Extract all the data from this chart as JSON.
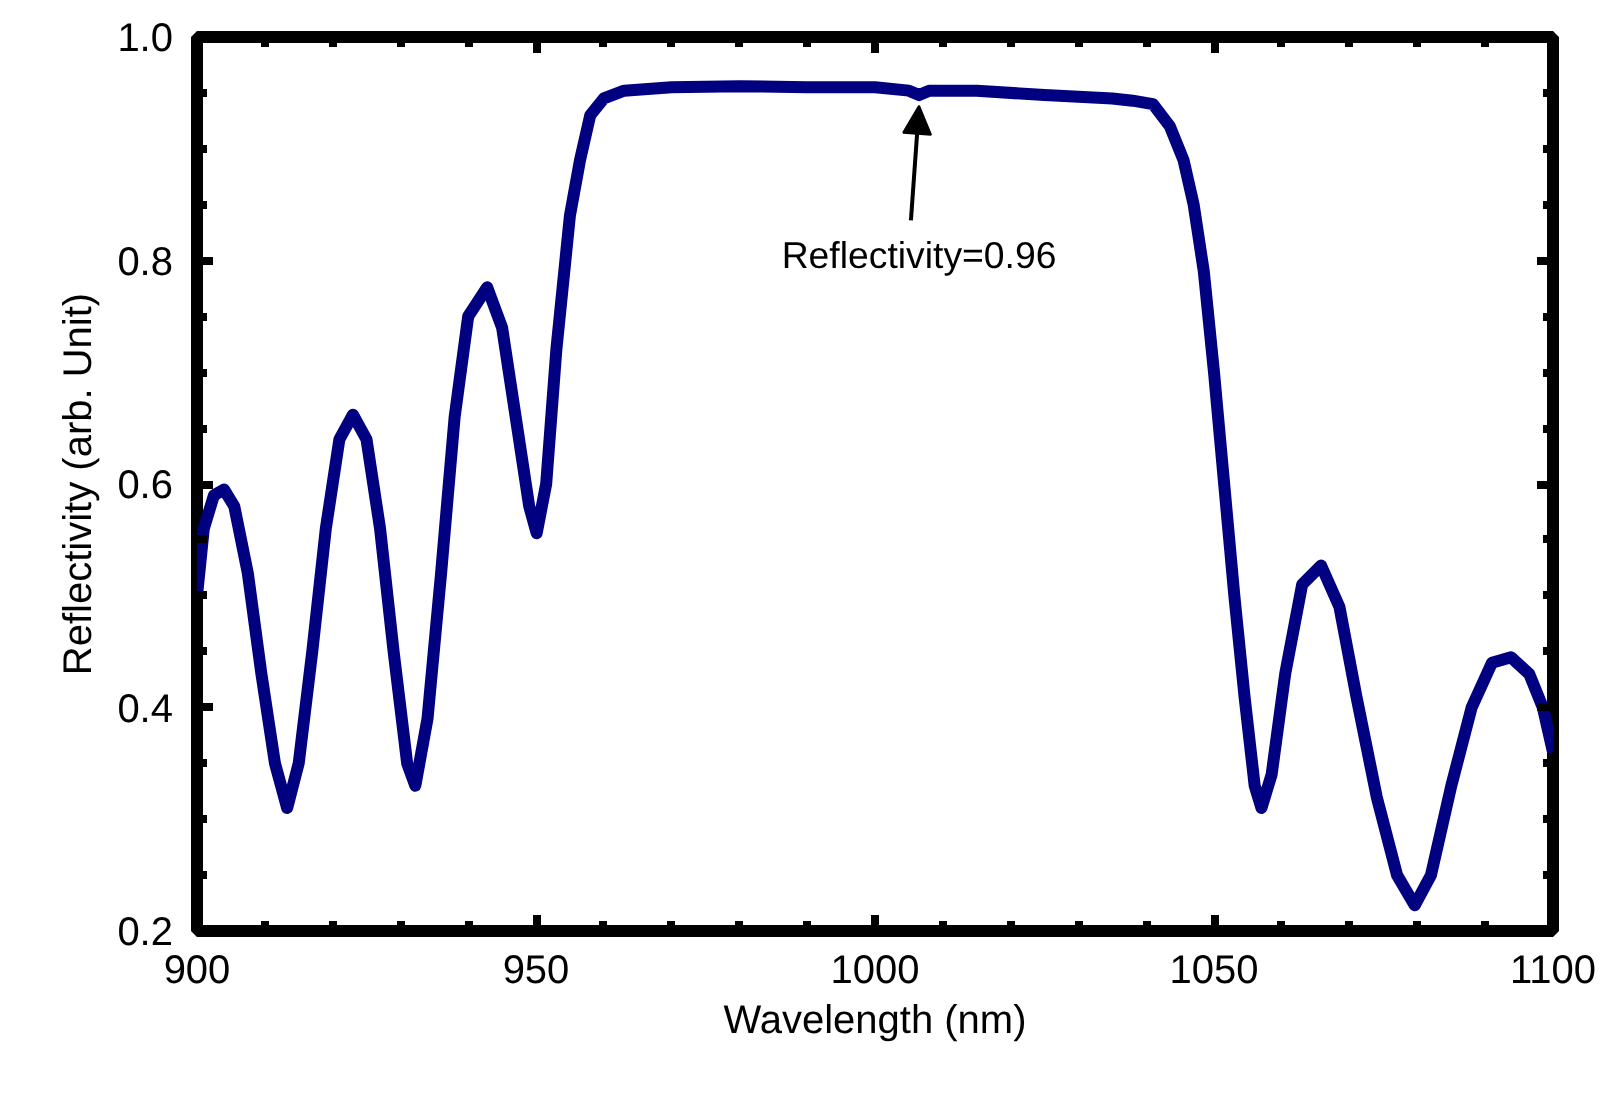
{
  "chart_data": {
    "type": "line",
    "xlabel": "Wavelength (nm)",
    "ylabel": "Reflectivity (arb. Unit)",
    "xlim": [
      900,
      1100
    ],
    "ylim": [
      0.2,
      1.0
    ],
    "xticks": [
      900,
      950,
      1000,
      1050,
      1100
    ],
    "yticks": [
      0.2,
      0.4,
      0.6,
      0.8,
      {
        "value": 1,
        "label": "1.0"
      }
    ],
    "grid": false,
    "marker": "none",
    "line_style": "solid",
    "series": [
      {
        "color": "#000080",
        "x": [
          900,
          901,
          902.5,
          904,
          905.5,
          907.5,
          909.5,
          911.5,
          913.3,
          915,
          917,
          919,
          921,
          923,
          925,
          927,
          929,
          931,
          932.2,
          934,
          936,
          938,
          940,
          942.8,
          945,
          947,
          949,
          950.1,
          951.5,
          953,
          955,
          956.5,
          958,
          960,
          963,
          970,
          980,
          990,
          1000,
          1005,
          1006.5,
          1008,
          1015,
          1025,
          1035,
          1038,
          1041,
          1043.5,
          1045.5,
          1047,
          1048.5,
          1050,
          1051.5,
          1053,
          1054.5,
          1056,
          1057,
          1058.5,
          1060.5,
          1063,
          1065.8,
          1068.5,
          1071,
          1074,
          1077,
          1079.6,
          1082,
          1085,
          1088,
          1091,
          1093.8,
          1096.5,
          1098.5,
          1100
        ],
        "values": [
          0.5,
          0.56,
          0.59,
          0.595,
          0.58,
          0.52,
          0.43,
          0.35,
          0.31,
          0.35,
          0.45,
          0.56,
          0.64,
          0.662,
          0.64,
          0.56,
          0.45,
          0.35,
          0.33,
          0.39,
          0.52,
          0.66,
          0.75,
          0.776,
          0.74,
          0.66,
          0.58,
          0.556,
          0.6,
          0.72,
          0.84,
          0.89,
          0.93,
          0.945,
          0.952,
          0.955,
          0.956,
          0.955,
          0.955,
          0.952,
          0.948,
          0.952,
          0.952,
          0.948,
          0.945,
          0.943,
          0.94,
          0.92,
          0.89,
          0.85,
          0.79,
          0.7,
          0.6,
          0.5,
          0.41,
          0.33,
          0.31,
          0.34,
          0.43,
          0.51,
          0.527,
          0.49,
          0.41,
          0.32,
          0.25,
          0.223,
          0.25,
          0.33,
          0.4,
          0.44,
          0.445,
          0.43,
          0.4,
          0.36
        ]
      }
    ],
    "annotations": [
      {
        "text": "Reflectivity=0.96",
        "x": 1006.5,
        "y": 0.948
      }
    ]
  }
}
